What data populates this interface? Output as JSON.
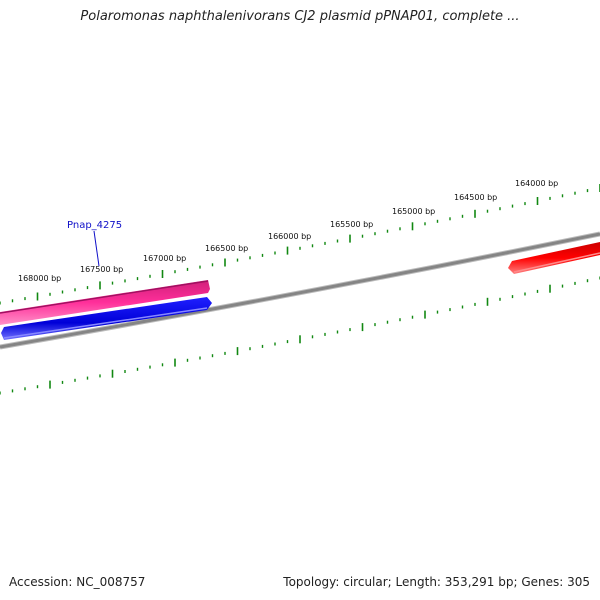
{
  "title": "Polaromonas naphthalenivorans CJ2 plasmid pPNAP01, complete ...",
  "footer": {
    "accession": "Accession: NC_008757",
    "summary": "Topology: circular; Length: 353,291 bp; Genes: 305"
  },
  "ruler": {
    "unit": "bp",
    "labels": [
      "164000 bp",
      "164500 bp",
      "165000 bp",
      "165500 bp",
      "166000 bp",
      "166500 bp",
      "167000 bp",
      "167500 bp",
      "168000 bp"
    ]
  },
  "genes": [
    {
      "label": "Pnap_4275",
      "color": "#ff3aa0",
      "strand": "forward"
    },
    {
      "label": "",
      "color": "#0000e6",
      "strand": "reverse"
    },
    {
      "label": "",
      "color": "#ee0000",
      "strand": "forward"
    }
  ],
  "colors": {
    "backbone": "#808080",
    "ruler_ticks": "#118811",
    "gene_label": "#1010c8"
  }
}
